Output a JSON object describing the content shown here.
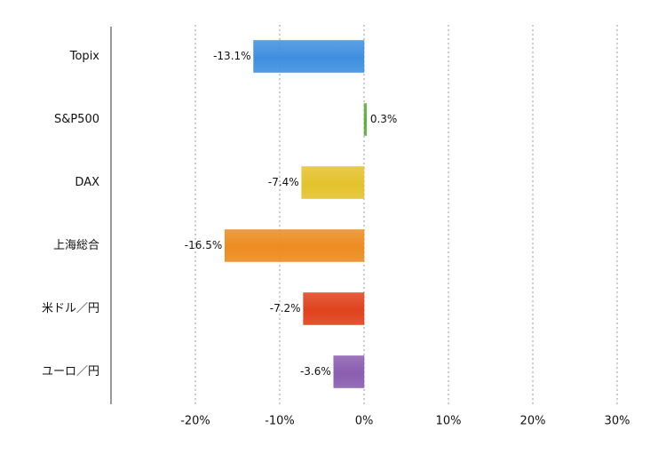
{
  "chart_data": {
    "type": "bar",
    "orientation": "horizontal",
    "categories": [
      "Topix",
      "S&P500",
      "DAX",
      "上海総合",
      "米ドル／円",
      "ユーロ／円"
    ],
    "values": [
      -13.1,
      0.3,
      -7.4,
      -16.5,
      -7.2,
      -3.6
    ],
    "data_labels": [
      "-13.1%",
      "0.3%",
      "-7.4%",
      "-16.5%",
      "-7.2%",
      "-3.6%"
    ],
    "colors": [
      "#3f8fe0",
      "#5cae3a",
      "#e4c22c",
      "#ec8c20",
      "#e0421c",
      "#8a5db0"
    ],
    "xlim": [
      -30,
      30
    ],
    "ticks": [
      -20,
      -10,
      0,
      10,
      20,
      30
    ],
    "tick_labels": [
      "-20%",
      "-10%",
      "0%",
      "10%",
      "20%",
      "30%"
    ],
    "grid": "vertical dotted",
    "title": "",
    "xlabel": "",
    "ylabel": ""
  }
}
